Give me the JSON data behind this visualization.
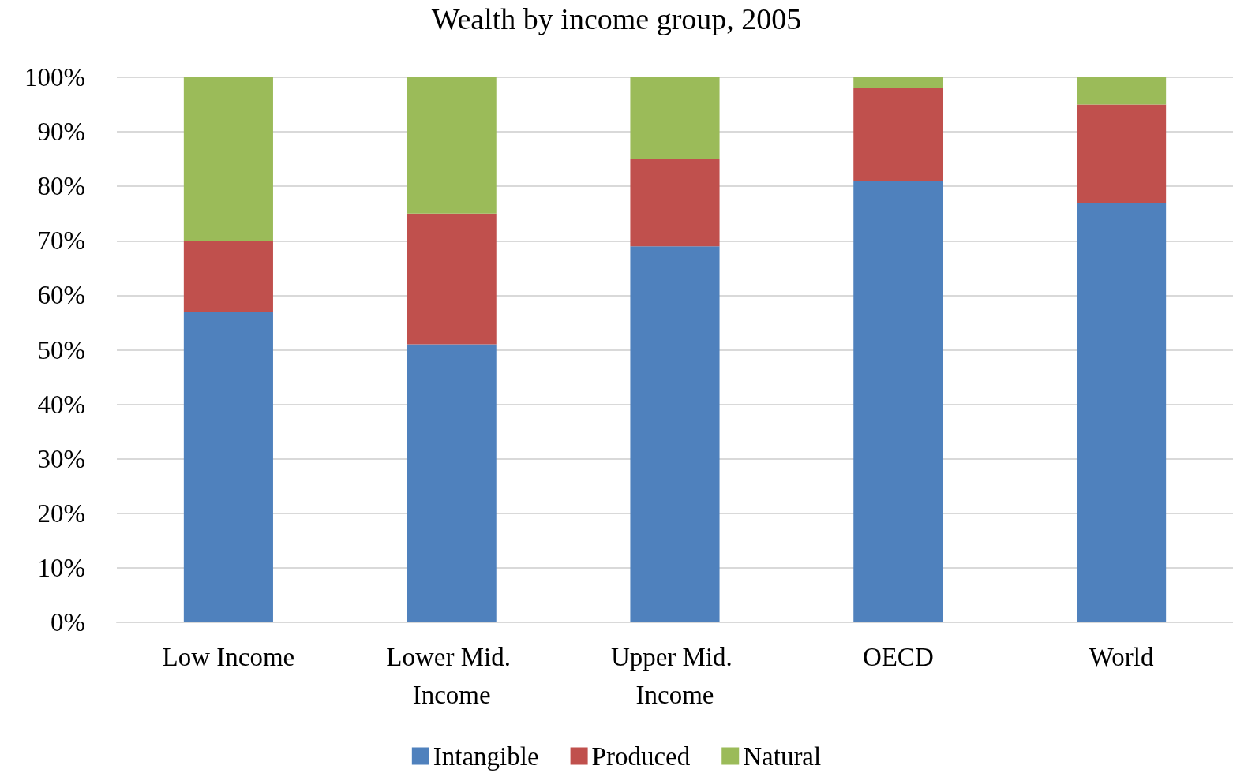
{
  "chart_data": {
    "type": "bar",
    "title": "Wealth by income group, 2005",
    "categories": [
      "Low Income",
      "Lower Mid. Income",
      "Upper Mid. Income",
      "OECD",
      "World"
    ],
    "stacked": true,
    "series": [
      {
        "name": "Intangible",
        "color": "#4f81bd",
        "values": [
          57,
          51,
          69,
          81,
          77
        ]
      },
      {
        "name": "Produced",
        "color": "#c0504d",
        "values": [
          13,
          24,
          16,
          17,
          18
        ]
      },
      {
        "name": "Natural",
        "color": "#9bbb59",
        "values": [
          30,
          25,
          15,
          2,
          5
        ]
      }
    ],
    "ylim": [
      0,
      100
    ],
    "yticks": [
      {
        "value": 0,
        "label": "0%"
      },
      {
        "value": 10,
        "label": "10%"
      },
      {
        "value": 20,
        "label": "20%"
      },
      {
        "value": 30,
        "label": "30%"
      },
      {
        "value": 40,
        "label": "40%"
      },
      {
        "value": 50,
        "label": "50%"
      },
      {
        "value": 60,
        "label": "60%"
      },
      {
        "value": 70,
        "label": "70%"
      },
      {
        "value": 80,
        "label": "80%"
      },
      {
        "value": 90,
        "label": "90%"
      },
      {
        "value": 100,
        "label": "100%"
      }
    ],
    "grid": "y",
    "legend": "bottom"
  }
}
